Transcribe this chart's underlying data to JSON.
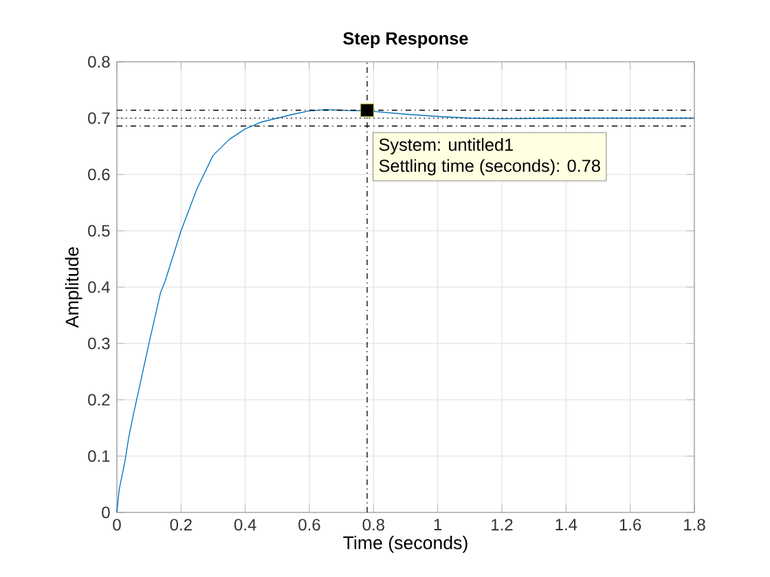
{
  "chart_data": {
    "type": "line",
    "title": "Step Response",
    "xlabel": "Time (seconds)",
    "ylabel": "Amplitude",
    "x": [
      0,
      0.007,
      0.025,
      0.036,
      0.05,
      0.1,
      0.136,
      0.15,
      0.2,
      0.25,
      0.3,
      0.35,
      0.4,
      0.45,
      0.5,
      0.55,
      0.6,
      0.65,
      0.7,
      0.78,
      0.9,
      1.0,
      1.1,
      1.2,
      1.4,
      1.6,
      1.8
    ],
    "series": [
      {
        "color": "#0072bd",
        "values": [
          0,
          0.04,
          0.09,
          0.13,
          0.17,
          0.3,
          0.39,
          0.41,
          0.5,
          0.575,
          0.634,
          0.662,
          0.681,
          0.693,
          0.7,
          0.707,
          0.713,
          0.715,
          0.714,
          0.713,
          0.707,
          0.703,
          0.7,
          0.699,
          0.7,
          0.7,
          0.7
        ]
      }
    ],
    "xlim": [
      0,
      1.8
    ],
    "ylim": [
      0,
      0.8
    ],
    "xticks": [
      0,
      0.2,
      0.4,
      0.6,
      0.8,
      1,
      1.2,
      1.4,
      1.6,
      1.8
    ],
    "yticks": [
      0,
      0.1,
      0.2,
      0.3,
      0.4,
      0.5,
      0.6,
      0.7,
      0.8
    ],
    "grid": true,
    "marker": "none",
    "line_style": "solid",
    "ref_lines": [
      {
        "axis": "y",
        "value": 0.714,
        "line_style": "dashdot",
        "color": "#000000"
      },
      {
        "axis": "y",
        "value": 0.686,
        "line_style": "dashdot",
        "color": "#000000"
      },
      {
        "axis": "y",
        "value": 0.7,
        "line_style": "dotted",
        "color": "#000000"
      },
      {
        "axis": "x",
        "value": 0.78,
        "line_style": "dashdot",
        "color": "#000000"
      }
    ],
    "annotations": [
      {
        "text": "System: untitled1",
        "x": 0.78,
        "y": 0.714
      },
      "Settling time (seconds): 0.78"
    ]
  }
}
